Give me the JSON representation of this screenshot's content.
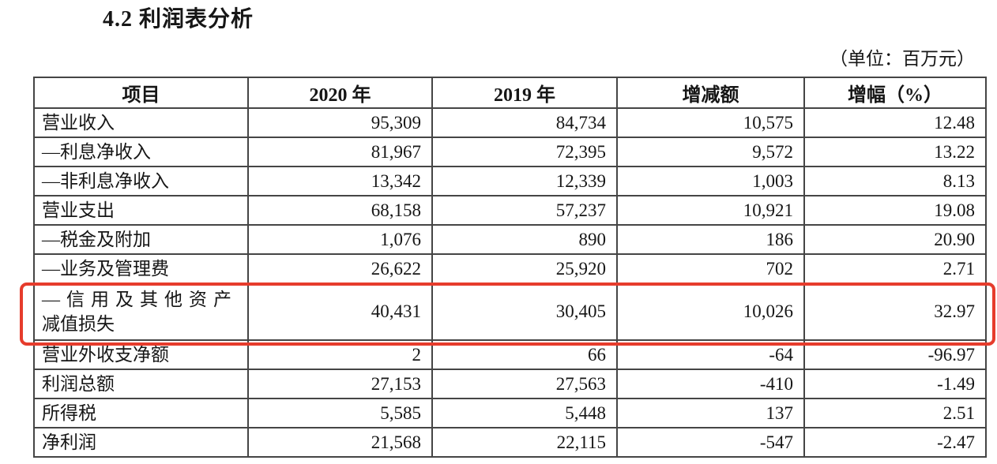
{
  "page": {
    "title": "4.2 利润表分析",
    "unit_note": "（单位：百万元）"
  },
  "table": {
    "highlight_color": "#e63c2c",
    "columns": [
      "项目",
      "2020 年",
      "2019 年",
      "增减额",
      "增幅（%）"
    ],
    "rows": [
      {
        "label": "营业收入",
        "v2020": "95,309",
        "v2019": "84,734",
        "change": "10,575",
        "pct": "12.48",
        "highlighted": false
      },
      {
        "label": "—利息净收入",
        "v2020": "81,967",
        "v2019": "72,395",
        "change": "9,572",
        "pct": "13.22",
        "highlighted": false
      },
      {
        "label": "—非利息净收入",
        "v2020": "13,342",
        "v2019": "12,339",
        "change": "1,003",
        "pct": "8.13",
        "highlighted": false
      },
      {
        "label": "营业支出",
        "v2020": "68,158",
        "v2019": "57,237",
        "change": "10,921",
        "pct": "19.08",
        "highlighted": false
      },
      {
        "label": "—税金及附加",
        "v2020": "1,076",
        "v2019": "890",
        "change": "186",
        "pct": "20.90",
        "highlighted": false
      },
      {
        "label": "—业务及管理费",
        "v2020": "26,622",
        "v2019": "25,920",
        "change": "702",
        "pct": "2.71",
        "highlighted": false
      },
      {
        "label": "—信用及其他资产\n减值损失",
        "v2020": "40,431",
        "v2019": "30,405",
        "change": "10,026",
        "pct": "32.97",
        "highlighted": true
      },
      {
        "label": "营业外收支净额",
        "v2020": "2",
        "v2019": "66",
        "change": "-64",
        "pct": "-96.97",
        "highlighted": false
      },
      {
        "label": "利润总额",
        "v2020": "27,153",
        "v2019": "27,563",
        "change": "-410",
        "pct": "-1.49",
        "highlighted": false
      },
      {
        "label": "所得税",
        "v2020": "5,585",
        "v2019": "5,448",
        "change": "137",
        "pct": "2.51",
        "highlighted": false
      },
      {
        "label": "净利润",
        "v2020": "21,568",
        "v2019": "22,115",
        "change": "-547",
        "pct": "-2.47",
        "highlighted": false
      }
    ]
  }
}
